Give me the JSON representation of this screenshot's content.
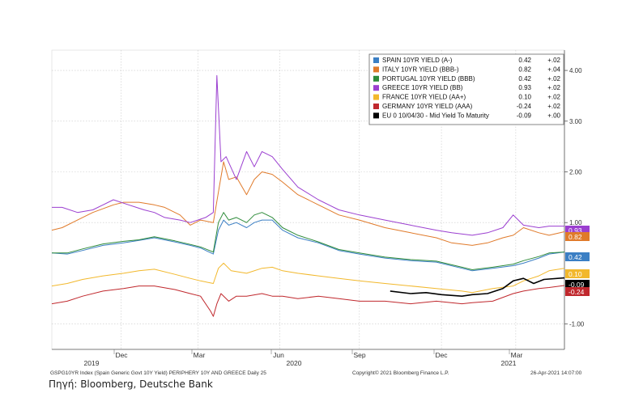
{
  "chart_data": {
    "type": "line",
    "y_axis_side": "right",
    "ylim": [
      -1.5,
      4.4
    ],
    "y_ticks": [
      -1.0,
      1.0,
      2.0,
      3.0,
      4.0
    ],
    "y_tick_labels": [
      "-1.00",
      "1.00",
      "2.00",
      "3.00",
      "4.00"
    ],
    "x_month_labels": [
      "Dec",
      "Mar",
      "Jun",
      "Sep",
      "Dec",
      "Mar"
    ],
    "x_year_labels": [
      "2019",
      "2020",
      "2021"
    ],
    "grid": true,
    "legend_placement": "top-right",
    "series": [
      {
        "name": "SPAIN 10YR YIELD (A-)",
        "last": "0.42",
        "change": "+.02",
        "color": "#3b7fc4",
        "points": [
          [
            0,
            0.4
          ],
          [
            0.03,
            0.38
          ],
          [
            0.06,
            0.45
          ],
          [
            0.1,
            0.55
          ],
          [
            0.14,
            0.6
          ],
          [
            0.17,
            0.65
          ],
          [
            0.2,
            0.7
          ],
          [
            0.24,
            0.62
          ],
          [
            0.27,
            0.55
          ],
          [
            0.29,
            0.5
          ],
          [
            0.315,
            0.38
          ],
          [
            0.325,
            0.85
          ],
          [
            0.335,
            1.05
          ],
          [
            0.345,
            0.95
          ],
          [
            0.36,
            1.0
          ],
          [
            0.38,
            0.9
          ],
          [
            0.395,
            1.0
          ],
          [
            0.41,
            1.05
          ],
          [
            0.43,
            1.05
          ],
          [
            0.45,
            0.85
          ],
          [
            0.48,
            0.7
          ],
          [
            0.52,
            0.6
          ],
          [
            0.56,
            0.45
          ],
          [
            0.6,
            0.38
          ],
          [
            0.65,
            0.3
          ],
          [
            0.7,
            0.25
          ],
          [
            0.75,
            0.22
          ],
          [
            0.8,
            0.1
          ],
          [
            0.82,
            0.05
          ],
          [
            0.86,
            0.1
          ],
          [
            0.9,
            0.15
          ],
          [
            0.92,
            0.2
          ],
          [
            0.95,
            0.3
          ],
          [
            0.97,
            0.38
          ],
          [
            1.0,
            0.42
          ]
        ]
      },
      {
        "name": "ITALY 10YR YIELD (BBB-)",
        "last": "0.82",
        "change": "+.04",
        "color": "#e07a2a",
        "points": [
          [
            0,
            0.85
          ],
          [
            0.02,
            0.9
          ],
          [
            0.05,
            1.05
          ],
          [
            0.08,
            1.2
          ],
          [
            0.12,
            1.35
          ],
          [
            0.14,
            1.4
          ],
          [
            0.17,
            1.4
          ],
          [
            0.2,
            1.35
          ],
          [
            0.22,
            1.3
          ],
          [
            0.25,
            1.15
          ],
          [
            0.27,
            0.95
          ],
          [
            0.29,
            1.05
          ],
          [
            0.315,
            1.0
          ],
          [
            0.325,
            1.6
          ],
          [
            0.335,
            2.2
          ],
          [
            0.345,
            1.85
          ],
          [
            0.36,
            1.9
          ],
          [
            0.38,
            1.55
          ],
          [
            0.395,
            1.85
          ],
          [
            0.41,
            2.0
          ],
          [
            0.43,
            1.95
          ],
          [
            0.45,
            1.8
          ],
          [
            0.48,
            1.55
          ],
          [
            0.52,
            1.35
          ],
          [
            0.56,
            1.15
          ],
          [
            0.6,
            1.05
          ],
          [
            0.65,
            0.9
          ],
          [
            0.7,
            0.8
          ],
          [
            0.75,
            0.7
          ],
          [
            0.78,
            0.6
          ],
          [
            0.82,
            0.55
          ],
          [
            0.85,
            0.6
          ],
          [
            0.88,
            0.7
          ],
          [
            0.9,
            0.75
          ],
          [
            0.92,
            0.9
          ],
          [
            0.95,
            0.8
          ],
          [
            0.97,
            0.75
          ],
          [
            1.0,
            0.82
          ]
        ]
      },
      {
        "name": "PORTUGAL 10YR YIELD (BBB)",
        "last": "0.42",
        "change": "+.02",
        "color": "#2e8b3a",
        "points": [
          [
            0,
            0.4
          ],
          [
            0.03,
            0.4
          ],
          [
            0.06,
            0.48
          ],
          [
            0.1,
            0.58
          ],
          [
            0.14,
            0.63
          ],
          [
            0.17,
            0.66
          ],
          [
            0.2,
            0.72
          ],
          [
            0.24,
            0.64
          ],
          [
            0.27,
            0.57
          ],
          [
            0.29,
            0.52
          ],
          [
            0.315,
            0.42
          ],
          [
            0.325,
            1.0
          ],
          [
            0.335,
            1.2
          ],
          [
            0.345,
            1.05
          ],
          [
            0.36,
            1.1
          ],
          [
            0.38,
            1.0
          ],
          [
            0.395,
            1.15
          ],
          [
            0.41,
            1.2
          ],
          [
            0.43,
            1.1
          ],
          [
            0.45,
            0.9
          ],
          [
            0.48,
            0.75
          ],
          [
            0.52,
            0.62
          ],
          [
            0.56,
            0.47
          ],
          [
            0.6,
            0.4
          ],
          [
            0.65,
            0.32
          ],
          [
            0.7,
            0.27
          ],
          [
            0.75,
            0.24
          ],
          [
            0.8,
            0.12
          ],
          [
            0.82,
            0.07
          ],
          [
            0.86,
            0.12
          ],
          [
            0.9,
            0.18
          ],
          [
            0.92,
            0.25
          ],
          [
            0.95,
            0.33
          ],
          [
            0.97,
            0.4
          ],
          [
            1.0,
            0.42
          ]
        ]
      },
      {
        "name": "GREECE 10YR YIELD (BB)",
        "last": "0.93",
        "change": "+.02",
        "color": "#9b3fd0",
        "points": [
          [
            0,
            1.3
          ],
          [
            0.02,
            1.3
          ],
          [
            0.05,
            1.2
          ],
          [
            0.08,
            1.25
          ],
          [
            0.12,
            1.45
          ],
          [
            0.15,
            1.35
          ],
          [
            0.18,
            1.25
          ],
          [
            0.2,
            1.2
          ],
          [
            0.22,
            1.1
          ],
          [
            0.25,
            1.05
          ],
          [
            0.27,
            1.0
          ],
          [
            0.3,
            1.1
          ],
          [
            0.315,
            1.2
          ],
          [
            0.322,
            3.9
          ],
          [
            0.33,
            2.2
          ],
          [
            0.34,
            2.3
          ],
          [
            0.36,
            1.85
          ],
          [
            0.38,
            2.4
          ],
          [
            0.395,
            2.1
          ],
          [
            0.41,
            2.4
          ],
          [
            0.43,
            2.3
          ],
          [
            0.45,
            2.05
          ],
          [
            0.48,
            1.7
          ],
          [
            0.52,
            1.45
          ],
          [
            0.56,
            1.25
          ],
          [
            0.6,
            1.15
          ],
          [
            0.65,
            1.05
          ],
          [
            0.7,
            0.95
          ],
          [
            0.75,
            0.85
          ],
          [
            0.78,
            0.8
          ],
          [
            0.82,
            0.75
          ],
          [
            0.85,
            0.8
          ],
          [
            0.88,
            0.9
          ],
          [
            0.9,
            1.15
          ],
          [
            0.92,
            0.95
          ],
          [
            0.95,
            0.9
          ],
          [
            0.97,
            0.93
          ],
          [
            1.0,
            0.93
          ]
        ]
      },
      {
        "name": "FRANCE 10YR YIELD (AA+)",
        "last": "0.10",
        "change": "+.02",
        "color": "#f2b82c",
        "points": [
          [
            0,
            -0.25
          ],
          [
            0.03,
            -0.2
          ],
          [
            0.06,
            -0.12
          ],
          [
            0.1,
            -0.05
          ],
          [
            0.14,
            0.0
          ],
          [
            0.17,
            0.05
          ],
          [
            0.2,
            0.08
          ],
          [
            0.24,
            -0.02
          ],
          [
            0.27,
            -0.1
          ],
          [
            0.29,
            -0.15
          ],
          [
            0.315,
            -0.2
          ],
          [
            0.325,
            0.1
          ],
          [
            0.335,
            0.2
          ],
          [
            0.35,
            0.05
          ],
          [
            0.38,
            0.0
          ],
          [
            0.41,
            0.1
          ],
          [
            0.43,
            0.12
          ],
          [
            0.45,
            0.05
          ],
          [
            0.48,
            0.0
          ],
          [
            0.52,
            -0.05
          ],
          [
            0.56,
            -0.1
          ],
          [
            0.6,
            -0.15
          ],
          [
            0.65,
            -0.2
          ],
          [
            0.7,
            -0.25
          ],
          [
            0.75,
            -0.3
          ],
          [
            0.8,
            -0.35
          ],
          [
            0.82,
            -0.38
          ],
          [
            0.86,
            -0.3
          ],
          [
            0.9,
            -0.25
          ],
          [
            0.92,
            -0.15
          ],
          [
            0.95,
            -0.05
          ],
          [
            0.97,
            0.05
          ],
          [
            1.0,
            0.1
          ]
        ]
      },
      {
        "name": "GERMANY 10YR YIELD (AAA)",
        "last": "-0.24",
        "change": "+.02",
        "color": "#c0282d",
        "points": [
          [
            0,
            -0.6
          ],
          [
            0.03,
            -0.55
          ],
          [
            0.06,
            -0.45
          ],
          [
            0.1,
            -0.35
          ],
          [
            0.14,
            -0.3
          ],
          [
            0.17,
            -0.25
          ],
          [
            0.2,
            -0.25
          ],
          [
            0.24,
            -0.32
          ],
          [
            0.27,
            -0.4
          ],
          [
            0.29,
            -0.45
          ],
          [
            0.31,
            -0.75
          ],
          [
            0.315,
            -0.85
          ],
          [
            0.322,
            -0.6
          ],
          [
            0.33,
            -0.4
          ],
          [
            0.345,
            -0.55
          ],
          [
            0.36,
            -0.45
          ],
          [
            0.38,
            -0.45
          ],
          [
            0.41,
            -0.4
          ],
          [
            0.43,
            -0.45
          ],
          [
            0.45,
            -0.45
          ],
          [
            0.48,
            -0.5
          ],
          [
            0.52,
            -0.45
          ],
          [
            0.56,
            -0.5
          ],
          [
            0.6,
            -0.55
          ],
          [
            0.65,
            -0.55
          ],
          [
            0.7,
            -0.6
          ],
          [
            0.75,
            -0.55
          ],
          [
            0.8,
            -0.6
          ],
          [
            0.82,
            -0.58
          ],
          [
            0.86,
            -0.55
          ],
          [
            0.9,
            -0.4
          ],
          [
            0.92,
            -0.35
          ],
          [
            0.95,
            -0.3
          ],
          [
            0.97,
            -0.28
          ],
          [
            1.0,
            -0.24
          ]
        ]
      },
      {
        "name": "EU 0 10/04/30 - Mid Yield To Maturity",
        "last": "-0.09",
        "change": "+.00",
        "color": "#000000",
        "points": [
          [
            0.66,
            -0.35
          ],
          [
            0.7,
            -0.4
          ],
          [
            0.73,
            -0.38
          ],
          [
            0.76,
            -0.42
          ],
          [
            0.8,
            -0.45
          ],
          [
            0.82,
            -0.42
          ],
          [
            0.85,
            -0.4
          ],
          [
            0.88,
            -0.3
          ],
          [
            0.9,
            -0.15
          ],
          [
            0.92,
            -0.1
          ],
          [
            0.94,
            -0.2
          ],
          [
            0.96,
            -0.12
          ],
          [
            1.0,
            -0.09
          ]
        ]
      }
    ],
    "end_tag_values": [
      "0.93",
      "0.82",
      "0.42",
      "0.10",
      "-0.09",
      "-0.24"
    ]
  },
  "footer": {
    "left": "GSPG10YR Index (Spain Generic Govt 10Y Yield) PERIPHERY 10Y AND GREECE  Daily 25",
    "center": "Copyright© 2021 Bloomberg Finance L.P.",
    "right": "26-Apr-2021 14:07:00"
  },
  "source": "Πηγή: Bloomberg, Deutsche Bank"
}
